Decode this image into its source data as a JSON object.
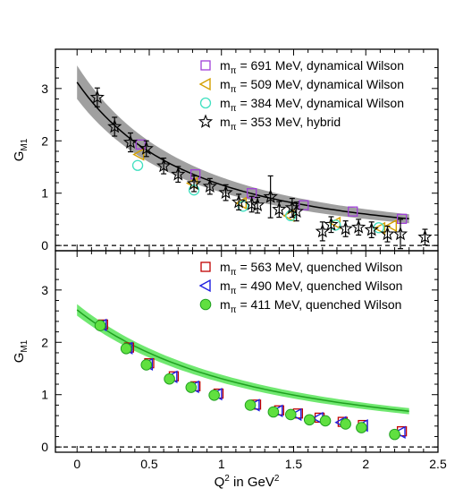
{
  "chart_data": [
    {
      "type": "scatter",
      "xlabel": "",
      "ylabel": "G_M1",
      "ylabel_main": "G",
      "ylabel_sub": "M1",
      "xlim": [
        -0.15,
        2.5
      ],
      "ylim": [
        -0.1,
        3.75
      ],
      "yticks": [
        "0",
        "1",
        "2",
        "3"
      ],
      "zero_line": "dashed",
      "legend_placement": "top-right",
      "fit_band": {
        "color": "#808080",
        "line_color": "#000000",
        "g0": 3.12,
        "lambda": 1.25,
        "width": 0.28
      },
      "series": [
        {
          "name": "m_π = 691 MeV, dynamical Wilson",
          "label_main": "m",
          "label_sub": "π",
          "label_rest": " = 691 MeV, dynamical Wilson",
          "marker": "square",
          "color": "#a040d8",
          "x": [
            0.44,
            0.82,
            1.21,
            1.57,
            1.91,
            2.25
          ],
          "y": [
            1.93,
            1.36,
            1.0,
            0.77,
            0.65,
            0.51
          ]
        },
        {
          "name": "m_π = 509 MeV, dynamical Wilson",
          "label_main": "m",
          "label_sub": "π",
          "label_rest": " = 509 MeV, dynamical Wilson",
          "marker": "triangle-left",
          "color": "#d4a000",
          "x": [
            0.43,
            0.8,
            1.14,
            1.47,
            1.79,
            2.1,
            2.18
          ],
          "y": [
            1.74,
            1.19,
            0.81,
            0.57,
            0.43,
            0.33,
            0.38
          ]
        },
        {
          "name": "m_π = 384 MeV, dynamical Wilson",
          "label_main": "m",
          "label_sub": "π",
          "label_rest": " = 384 MeV, dynamical Wilson",
          "marker": "circle-open",
          "color": "#40e0c0",
          "x": [
            0.42,
            0.81,
            1.15,
            1.48,
            1.79,
            2.09
          ],
          "y": [
            1.53,
            1.06,
            0.75,
            0.57,
            0.39,
            0.34
          ]
        },
        {
          "name": "m_π = 353 MeV, hybrid",
          "label_main": "m",
          "label_sub": "π",
          "label_rest": " = 353 MeV, hybrid",
          "marker": "star",
          "color": "#000000",
          "x": [
            0.14,
            0.26,
            0.37,
            0.48,
            0.6,
            0.7,
            0.81,
            0.92,
            1.03,
            1.12,
            1.21,
            1.25,
            1.34,
            1.4,
            1.49,
            1.52,
            1.7,
            1.76,
            1.86,
            1.95,
            2.04,
            2.15,
            2.24,
            2.41
          ],
          "y": [
            2.83,
            2.27,
            1.97,
            1.85,
            1.52,
            1.36,
            1.18,
            1.13,
            1.01,
            0.83,
            0.79,
            0.77,
            0.93,
            0.69,
            0.72,
            0.65,
            0.27,
            0.4,
            0.32,
            0.35,
            0.3,
            0.22,
            0.22,
            0.16
          ],
          "err": [
            0.18,
            0.18,
            0.18,
            0.15,
            0.15,
            0.15,
            0.15,
            0.15,
            0.15,
            0.15,
            0.15,
            0.15,
            0.4,
            0.15,
            0.18,
            0.18,
            0.18,
            0.15,
            0.15,
            0.15,
            0.15,
            0.15,
            0.28,
            0.15
          ]
        }
      ]
    },
    {
      "type": "scatter",
      "xlabel": "Q² in GeV²",
      "xlabel_main": "Q",
      "xlabel_sup": "2",
      "xlabel_mid": " in GeV",
      "xlabel_sup2": "2",
      "ylabel": "G_M1",
      "ylabel_main": "G",
      "ylabel_sub": "M1",
      "xlim": [
        -0.15,
        2.5
      ],
      "ylim": [
        -0.1,
        3.75
      ],
      "xticks": [
        "0",
        "0.5",
        "1",
        "1.5",
        "2",
        "2.5"
      ],
      "yticks": [
        "0",
        "1",
        "2",
        "3"
      ],
      "zero_line": "dashed",
      "legend_placement": "top-right",
      "fit_band": {
        "color": "#40e040",
        "line_color": "#20a020",
        "g0": 2.62,
        "lambda": 1.55,
        "width": 0.07
      },
      "series": [
        {
          "name": "m_π = 563 MeV, quenched Wilson",
          "label_main": "m",
          "label_sub": "π",
          "label_rest": " = 563 MeV, quenched Wilson",
          "marker": "square",
          "color": "#c00000",
          "x": [
            0.18,
            0.36,
            0.5,
            0.67,
            0.82,
            0.98,
            1.24,
            1.4,
            1.53,
            1.68,
            1.84,
            1.98,
            2.25
          ],
          "y": [
            2.34,
            1.9,
            1.6,
            1.35,
            1.16,
            1.02,
            0.81,
            0.7,
            0.64,
            0.56,
            0.48,
            0.42,
            0.3
          ]
        },
        {
          "name": "m_π = 490 MeV, quenched Wilson",
          "label_main": "m",
          "label_sub": "π",
          "label_rest": " = 490 MeV, quenched Wilson",
          "marker": "triangle-left",
          "color": "#2020e0",
          "x": [
            0.17,
            0.35,
            0.49,
            0.66,
            0.81,
            0.97,
            1.23,
            1.39,
            1.52,
            1.67,
            1.83,
            1.98,
            2.24
          ],
          "y": [
            2.33,
            1.89,
            1.58,
            1.34,
            1.15,
            1.01,
            0.8,
            0.69,
            0.62,
            0.55,
            0.47,
            0.41,
            0.28
          ]
        },
        {
          "name": "m_π = 411 MeV, quenched Wilson",
          "label_main": "m",
          "label_sub": "π",
          "label_rest": " = 411 MeV, quenched Wilson",
          "marker": "circle-filled",
          "color": "#60e040",
          "x": [
            0.16,
            0.34,
            0.48,
            0.64,
            0.79,
            0.95,
            1.2,
            1.36,
            1.48,
            1.61,
            1.72,
            1.86,
            1.97,
            2.2
          ],
          "y": [
            2.32,
            1.88,
            1.57,
            1.3,
            1.14,
            0.99,
            0.8,
            0.67,
            0.62,
            0.52,
            0.5,
            0.44,
            0.37,
            0.24
          ]
        }
      ]
    }
  ]
}
